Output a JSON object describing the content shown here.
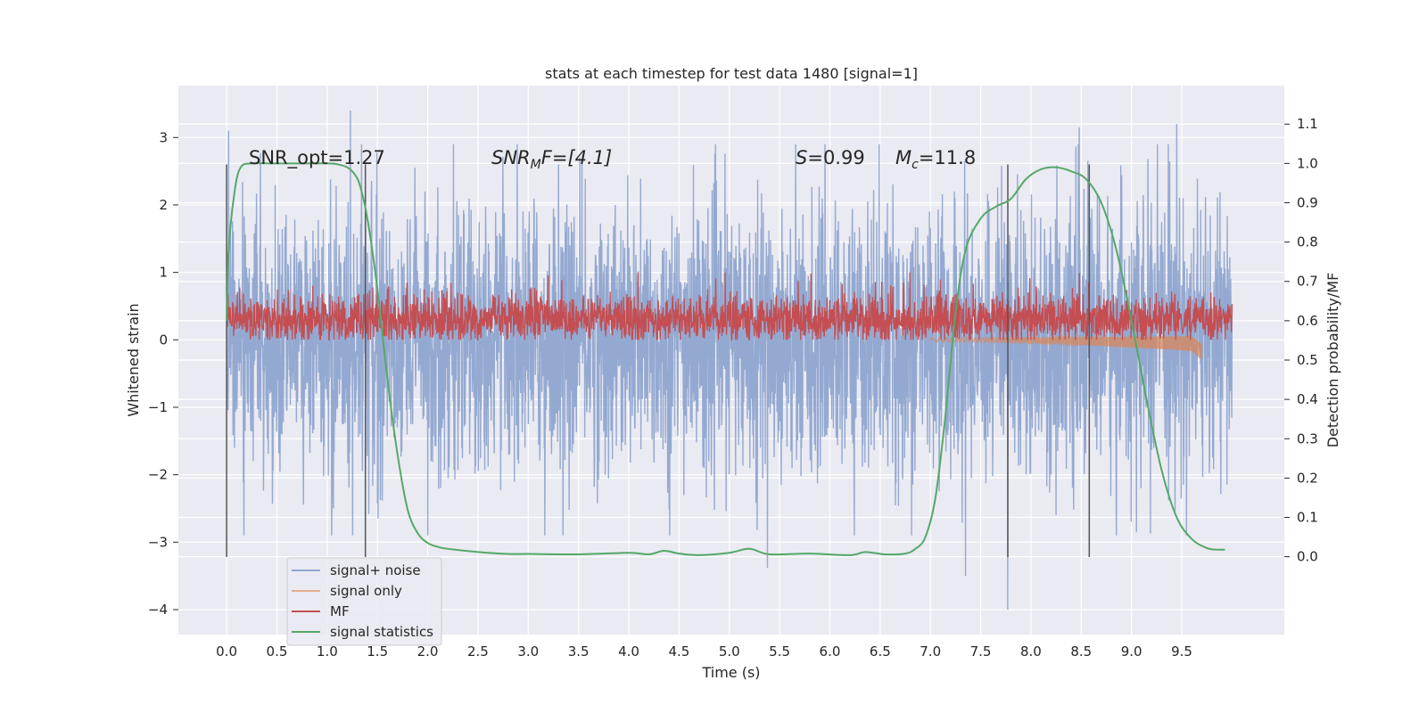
{
  "chart_data": {
    "type": "line",
    "title": "stats at each timestep for test data 1480 [signal=1]",
    "xlabel": "Time (s)",
    "ylabel": "Whitened strain",
    "y2label": "Detection probability/MF",
    "xlim": [
      -0.48,
      10.52
    ],
    "ylim": [
      -4.37,
      3.77
    ],
    "y2lim": [
      -0.198,
      1.198
    ],
    "grid": true,
    "legend_position": "lower-left",
    "x_ticks": [
      "0.0",
      "0.5",
      "1.0",
      "1.5",
      "2.0",
      "2.5",
      "3.0",
      "3.5",
      "4.0",
      "4.5",
      "5.0",
      "5.5",
      "6.0",
      "6.5",
      "7.0",
      "7.5",
      "8.0",
      "8.5",
      "9.0",
      "9.5"
    ],
    "y_ticks": [
      "3",
      "2",
      "1",
      "0",
      "−1",
      "−2",
      "−3",
      "−4"
    ],
    "y2_ticks": [
      "1.1",
      "1.0",
      "0.9",
      "0.8",
      "0.7",
      "0.6",
      "0.5",
      "0.4",
      "0.3",
      "0.2",
      "0.1",
      "0.0"
    ],
    "annotations": {
      "snr_opt": "SNR_opt=1.27",
      "snr_mf_a": "SNR",
      "snr_mf_b": "M",
      "snr_mf_c": "F=[4.1]",
      "s_a": "S",
      "s_b": "=0.99",
      "mc_a": "M",
      "mc_b": "c",
      "mc_c": "=11.8"
    },
    "vlines": [
      0.0,
      1.38,
      7.77,
      8.58
    ],
    "vline_y_range": [
      -3.22,
      2.6
    ],
    "series": [
      {
        "name": "signal+ noise",
        "color": "#8fa5cf",
        "x_range": [
          0.0,
          10.0
        ],
        "envelope": "random noise, typical range ±1.5, peaks to about 3.4 and -4.0",
        "peaks": [
          {
            "x": 0.02,
            "y": 3.1
          },
          {
            "x": 1.23,
            "y": 3.4
          },
          {
            "x": 3.3,
            "y": 2.6
          },
          {
            "x": 5.38,
            "y": -3.38
          },
          {
            "x": 7.35,
            "y": -3.5
          },
          {
            "x": 7.77,
            "y": -4.0
          },
          {
            "x": 8.48,
            "y": 3.15
          },
          {
            "x": 9.45,
            "y": 3.2
          }
        ]
      },
      {
        "name": "signal only",
        "color": "#dd8452",
        "note": "near zero, faint chirp visible from ~7.0 s to 9.7 s, dipping to about -0.18 at 9.7 s"
      },
      {
        "name": "MF",
        "color": "#c44e52",
        "x_range": [
          0.0,
          10.0
        ],
        "baseline_y": 0.3,
        "range_y": [
          0.0,
          1.0
        ]
      },
      {
        "name": "signal statistics",
        "color": "#55a868",
        "axis": "right",
        "x": [
          0.0,
          0.02,
          0.08,
          0.14,
          0.25,
          0.5,
          0.8,
          1.0,
          1.1,
          1.2,
          1.28,
          1.33,
          1.4,
          1.5,
          1.6,
          1.7,
          1.8,
          1.9,
          2.0,
          2.1,
          2.2,
          2.5,
          2.8,
          3.0,
          3.5,
          4.0,
          4.2,
          4.35,
          4.5,
          4.7,
          5.0,
          5.2,
          5.4,
          5.8,
          6.2,
          6.35,
          6.55,
          6.75,
          6.85,
          6.95,
          7.05,
          7.15,
          7.25,
          7.35,
          7.5,
          7.65,
          7.8,
          7.95,
          8.1,
          8.25,
          8.4,
          8.55,
          8.7,
          8.85,
          9.0,
          9.15,
          9.3,
          9.45,
          9.6,
          9.75,
          9.85,
          9.93
        ],
        "values": [
          0.6,
          0.78,
          0.93,
          0.99,
          1.0,
          1.0,
          1.0,
          1.0,
          0.998,
          0.99,
          0.97,
          0.94,
          0.86,
          0.68,
          0.45,
          0.26,
          0.12,
          0.06,
          0.035,
          0.025,
          0.02,
          0.012,
          0.007,
          0.007,
          0.006,
          0.01,
          0.006,
          0.015,
          0.008,
          0.004,
          0.01,
          0.02,
          0.006,
          0.008,
          0.004,
          0.012,
          0.006,
          0.008,
          0.02,
          0.05,
          0.15,
          0.36,
          0.62,
          0.78,
          0.86,
          0.89,
          0.91,
          0.96,
          0.985,
          0.99,
          0.98,
          0.96,
          0.9,
          0.78,
          0.6,
          0.4,
          0.22,
          0.1,
          0.045,
          0.022,
          0.018,
          0.018
        ]
      }
    ]
  }
}
